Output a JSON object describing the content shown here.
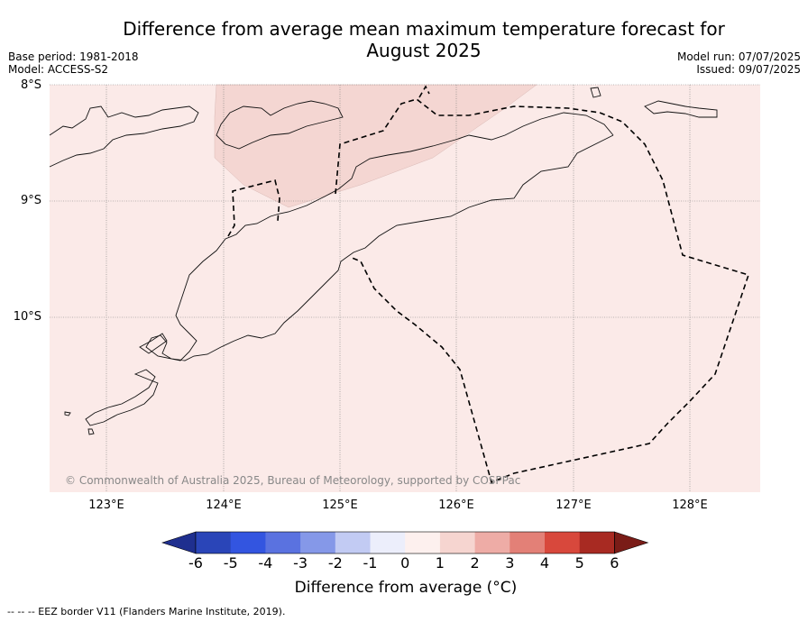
{
  "title": "Difference from average mean maximum temperature forecast for August 2025",
  "meta": {
    "base_period": "Base period: 1981-2018",
    "model": "Model: ACCESS-S2",
    "model_run": "Model run: 07/07/2025",
    "issued": "Issued: 09/07/2025"
  },
  "axes": {
    "lat_labels": [
      "8°S",
      "9°S",
      "10°S"
    ],
    "lon_labels": [
      "123°E",
      "124°E",
      "125°E",
      "126°E",
      "127°E",
      "128°E"
    ]
  },
  "copyright": "© Commonwealth of Australia 2025, Bureau of Meteorology, supported by COSPPac",
  "colorbar": {
    "ticks": [
      "-6",
      "-5",
      "-4",
      "-3",
      "-2",
      "-1",
      "0",
      "1",
      "2",
      "3",
      "4",
      "5",
      "6"
    ],
    "colors": [
      "#1f2f8f",
      "#2a45b8",
      "#3355e0",
      "#5a72e0",
      "#8598e8",
      "#c2cbf3",
      "#eceefb",
      "#fdf0ee",
      "#f6d5d0",
      "#eeaca6",
      "#e38077",
      "#d8483c",
      "#a82a22",
      "#7a1c17"
    ],
    "label": "Difference from average (°C)"
  },
  "map_colors": {
    "background": "#fbeae8",
    "patch": "#f4d6d2"
  },
  "footer": "--  --  -- EEZ border V11 (Flanders Marine Institute, 2019)."
}
